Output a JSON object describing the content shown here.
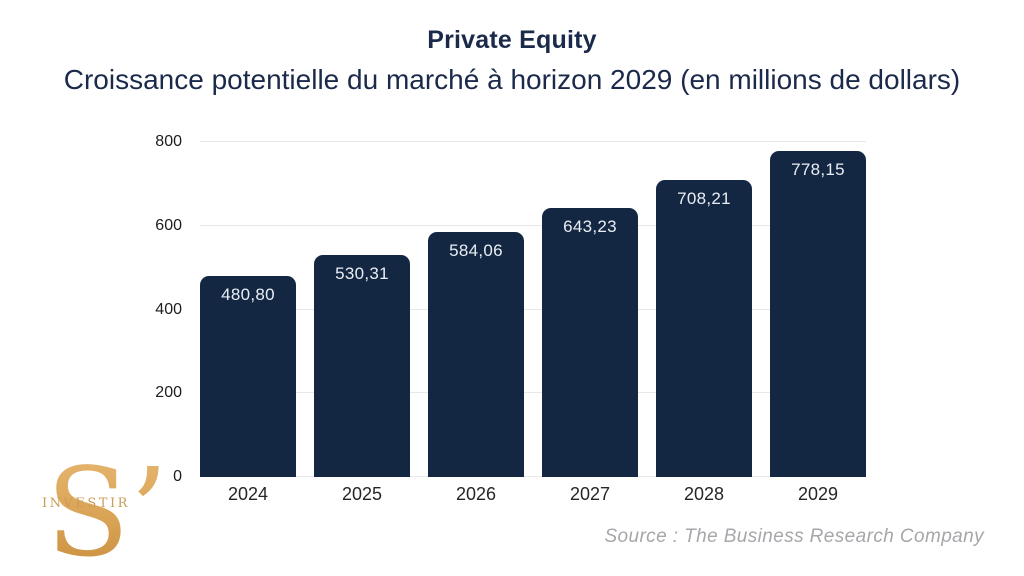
{
  "header": {
    "title": "Private Equity",
    "subtitle": "Croissance potentielle du marché à horizon 2029 (en millions de dollars)"
  },
  "chart_data": {
    "type": "bar",
    "title": "Private Equity",
    "subtitle": "Croissance potentielle du marché à horizon 2029 (en millions de dollars)",
    "categories": [
      "2024",
      "2025",
      "2026",
      "2027",
      "2028",
      "2029"
    ],
    "values": [
      480.8,
      530.31,
      584.06,
      643.23,
      708.21,
      778.15
    ],
    "value_labels": [
      "480,80",
      "530,31",
      "584,06",
      "643,23",
      "708,21",
      "778,15"
    ],
    "xlabel": "",
    "ylabel": "",
    "ylim": [
      0,
      800
    ],
    "yticks": [
      0,
      200,
      400,
      600,
      800
    ],
    "ytick_labels": [
      "0",
      "200",
      "400",
      "600",
      "800"
    ],
    "grid": true,
    "legend": "none",
    "bar_color": "#142742",
    "value_label_color": "#eaeef4"
  },
  "footer": {
    "source": "Source : The Business Research Company"
  },
  "logo": {
    "monogram": "S’",
    "wordmark": "INVESTIR",
    "color": "#d9a355"
  }
}
